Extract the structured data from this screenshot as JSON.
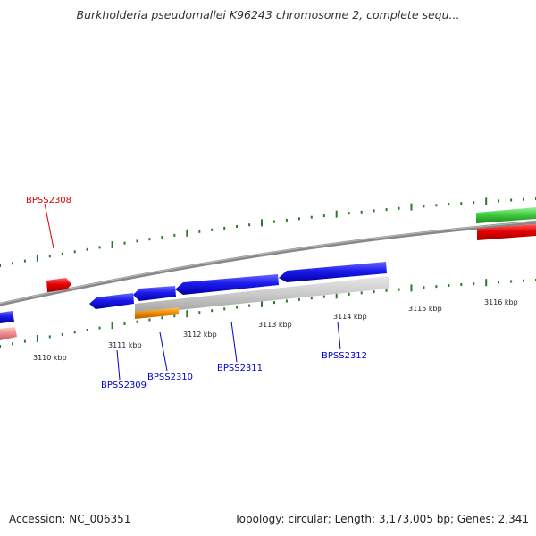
{
  "title": "Burkholderia pseudomallei K96243 chromosome 2, complete sequ...",
  "footer": {
    "accession": "Accession: NC_006351",
    "summary": "Topology: circular; Length: 3,173,005 bp; Genes: 2,341"
  },
  "scale": {
    "labels": [
      "3110 kbp",
      "3111 kbp",
      "3112 kbp",
      "3113 kbp",
      "3114 kbp",
      "3115 kbp",
      "3116 kbp"
    ]
  },
  "genes": [
    {
      "name": "BPSS2308",
      "strand": "forward",
      "color": "#dd0000"
    },
    {
      "name": "BPSS2309",
      "strand": "reverse",
      "color": "#0000cc"
    },
    {
      "name": "BPSS2310",
      "strand": "reverse",
      "color": "#0000cc"
    },
    {
      "name": "BPSS2311",
      "strand": "reverse",
      "color": "#0000cc"
    },
    {
      "name": "BPSS2312",
      "strand": "reverse",
      "color": "#0000cc"
    }
  ],
  "colors": {
    "gene_forward": "#e60000",
    "gene_reverse": "#1a1aee",
    "gene_pink": "#ee8a8a",
    "gene_green": "#44cc44",
    "feature_grey": "#c8c8c8",
    "feature_orange": "#ee8a00",
    "backbone": "#888888",
    "ticks": "#2a7a2a",
    "label_forward": "#dd0000",
    "label_reverse": "#0000cc"
  }
}
